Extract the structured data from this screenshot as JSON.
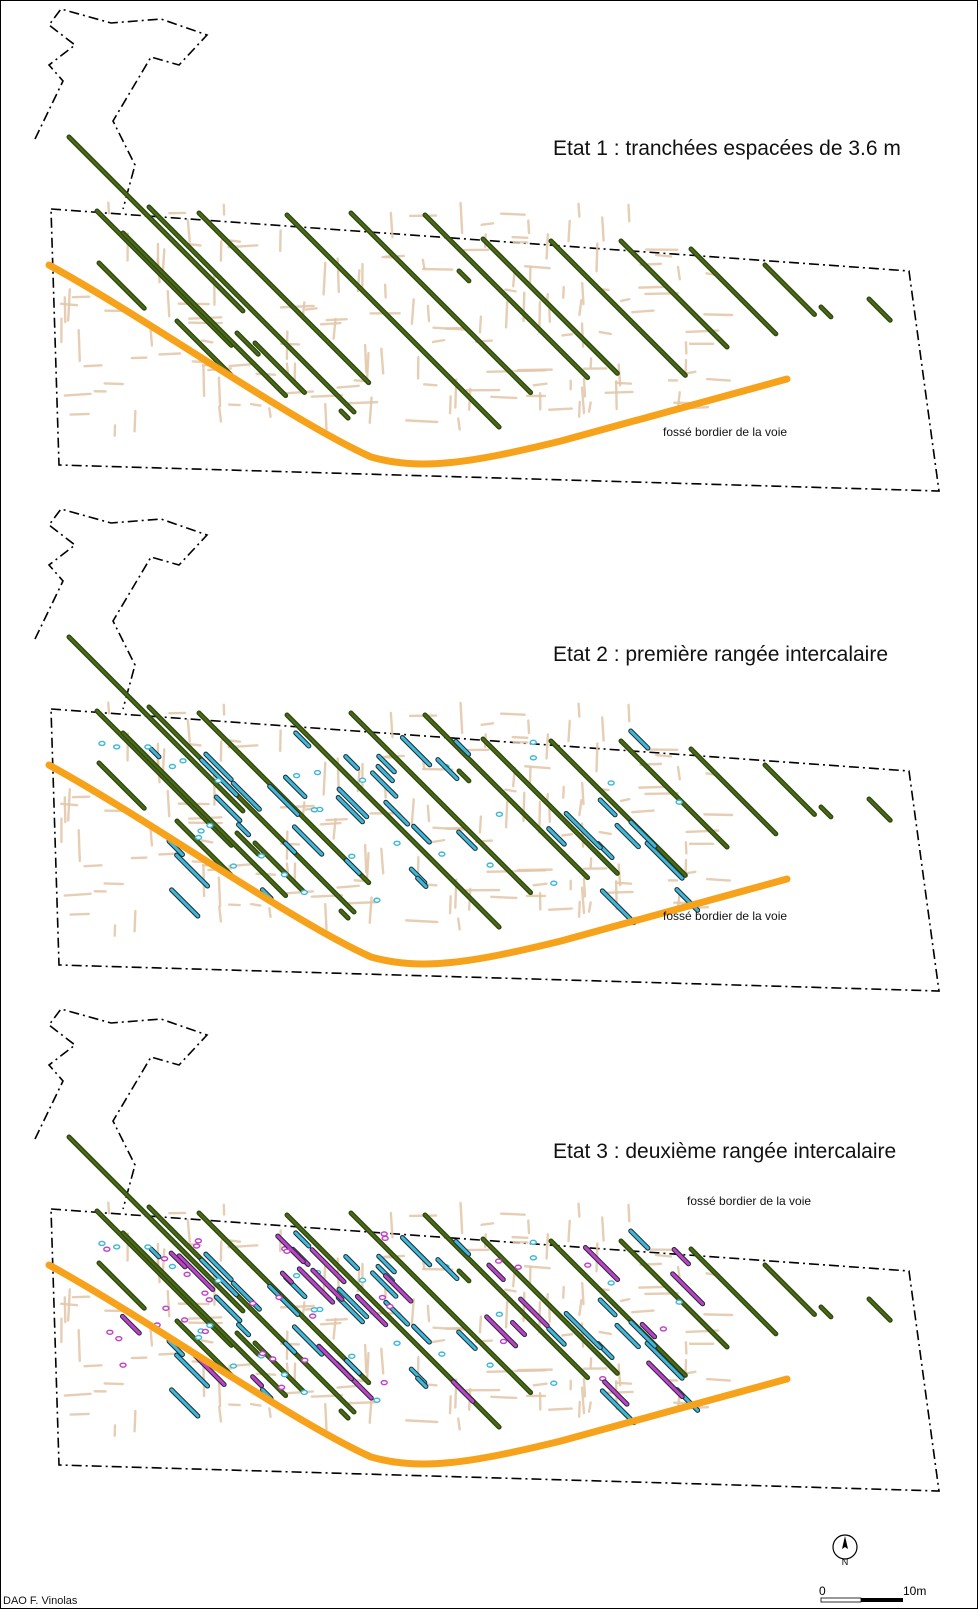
{
  "panels": [
    {
      "title": "Etat 1 : tranchées espacées de 3.6 m",
      "ditch_label": "fossé bordier de la voie"
    },
    {
      "title": "Etat 2 : première rangée intercalaire",
      "ditch_label": "fossé bordier de la voie"
    },
    {
      "title": "Etat 3 : deuxième rangée intercalaire",
      "ditch_label": "fossé bordier de la voie"
    }
  ],
  "credit": "DAO F. Vinolas",
  "scale": {
    "start_label": "0",
    "end_label": "10m"
  },
  "north_label": "N",
  "colors": {
    "trench_main": "#2f4a0e",
    "trench_main_fill": "#4e6b1c",
    "trench_intercalary_1": "#3fb7d6",
    "trench_intercalary_2": "#c040c8",
    "road_ditch": "#f7a21b",
    "background_remains": "#e2c6a8",
    "boundary": "#000000"
  }
}
